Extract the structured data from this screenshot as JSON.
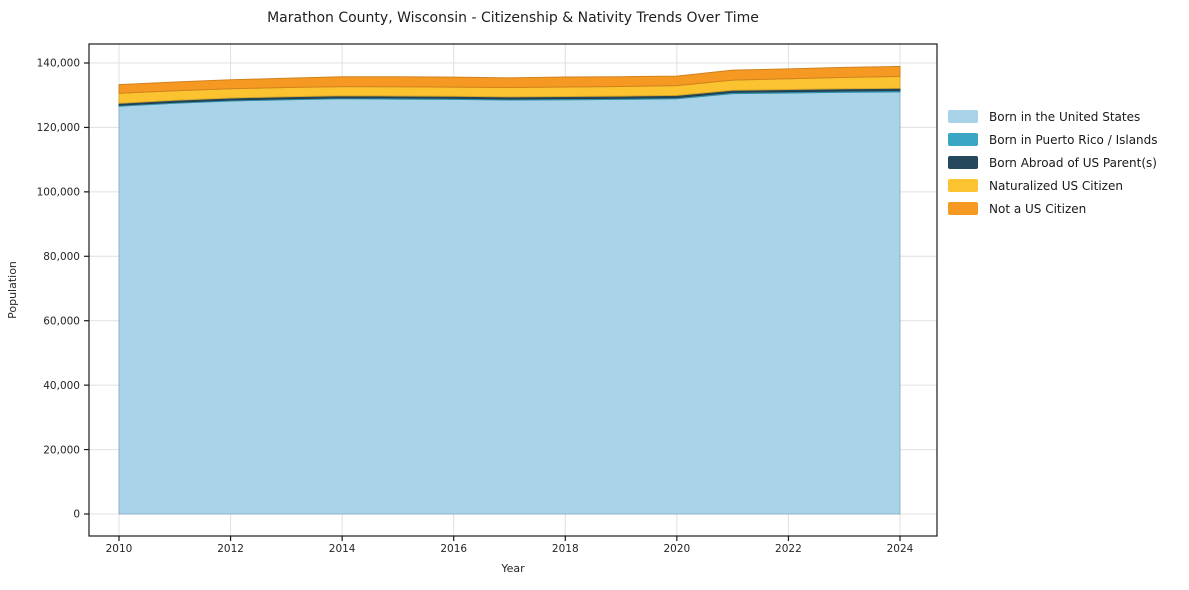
{
  "chart_data": {
    "type": "area",
    "stacked": true,
    "title": "Marathon County, Wisconsin - Citizenship & Nativity Trends Over Time",
    "xlabel": "Year",
    "ylabel": "Population",
    "x": [
      2010,
      2011,
      2012,
      2013,
      2014,
      2015,
      2016,
      2017,
      2018,
      2019,
      2020,
      2021,
      2022,
      2023,
      2024
    ],
    "series": [
      {
        "name": "Born in the United States",
        "color": "#a8d3e9",
        "values": [
          126600,
          127500,
          128200,
          128600,
          128900,
          128800,
          128700,
          128500,
          128600,
          128700,
          128900,
          130500,
          130700,
          130900,
          131000
        ]
      },
      {
        "name": "Born in Puerto Rico / Islands",
        "color": "#3aa6c5",
        "values": [
          300,
          300,
          310,
          310,
          320,
          320,
          330,
          330,
          340,
          340,
          350,
          360,
          380,
          400,
          420
        ]
      },
      {
        "name": "Born Abroad of US Parent(s)",
        "color": "#25485c",
        "values": [
          600,
          610,
          620,
          630,
          640,
          650,
          650,
          660,
          660,
          670,
          680,
          690,
          700,
          720,
          740
        ]
      },
      {
        "name": "Naturalized US Citizen",
        "color": "#fcc331",
        "values": [
          3100,
          3000,
          2900,
          2850,
          2800,
          2850,
          2850,
          2900,
          2950,
          3000,
          3050,
          3150,
          3300,
          3500,
          3650
        ]
      },
      {
        "name": "Not a US Citizen",
        "color": "#f69923",
        "values": [
          2700,
          2700,
          2750,
          2900,
          3050,
          3100,
          3100,
          3000,
          3100,
          3050,
          2950,
          3100,
          3100,
          3100,
          3150
        ]
      }
    ],
    "xticks": [
      2010,
      2012,
      2014,
      2016,
      2018,
      2020,
      2022,
      2024
    ],
    "xtick_labels": [
      "2010",
      "2012",
      "2014",
      "2016",
      "2018",
      "2020",
      "2022",
      "2024"
    ],
    "yticks": [
      0,
      20000,
      40000,
      60000,
      80000,
      100000,
      120000,
      140000
    ],
    "ytick_labels": [
      "0",
      "20,000",
      "40,000",
      "60,000",
      "80,000",
      "100,000",
      "120,000",
      "140,000"
    ],
    "ylim": [
      0,
      140000
    ],
    "xlim": [
      2010,
      2024
    ],
    "grid": true,
    "legend_position": "right",
    "colors": {
      "background": "#ffffff",
      "grid": "#e0e0e0",
      "spine": "#1a1a1a",
      "text": "#262626"
    }
  }
}
